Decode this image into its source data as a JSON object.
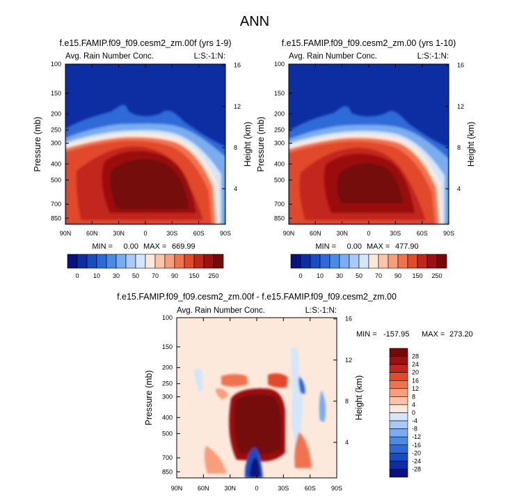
{
  "figure_title": "ANN",
  "colors": {
    "abs_levels": [
      "#08127d",
      "#0d2ea3",
      "#1a4bc2",
      "#2d6ad8",
      "#4b8be4",
      "#7aacf0",
      "#a9caf5",
      "#d3e6fa",
      "#fde9dc",
      "#fbc5aa",
      "#f79f7c",
      "#f0734f",
      "#e14a2a",
      "#c2261a",
      "#9b1010",
      "#750808"
    ],
    "diff_levels": [
      "#08127d",
      "#0d2ea3",
      "#1a4bc2",
      "#2d6ad8",
      "#4b8be4",
      "#7aacf0",
      "#a9caf5",
      "#d3e6fa",
      "#fde9dc",
      "#fbc5aa",
      "#f79f7c",
      "#f0734f",
      "#e14a2a",
      "#c2261a",
      "#9b1010",
      "#750808"
    ]
  },
  "chart_data": [
    {
      "type": "heatmap",
      "title": "f.e15.FAMIP.f09_f09.cesm2_zm.00f (yrs 1-9)",
      "left_string": "Avg. Rain Number Conc.",
      "right_string": "L:S:-1:N:",
      "xlabel": "",
      "ylabel": "Pressure (mb)",
      "y2label": "Height (km)",
      "x_ticks": [
        "90N",
        "60N",
        "30N",
        "0",
        "30S",
        "60S",
        "90S"
      ],
      "y_ticks": [
        "100",
        "150",
        "200",
        "250",
        "300",
        "400",
        "500",
        "700",
        "850"
      ],
      "y_tick_values": [
        100,
        150,
        200,
        250,
        300,
        400,
        500,
        700,
        850
      ],
      "ylim": [
        100,
        925
      ],
      "y2_ticks": [
        "16",
        "12",
        "8",
        "4"
      ],
      "y2_tick_values": [
        16,
        12,
        8,
        4
      ],
      "min_label": "MIN =",
      "min_value": "0.00",
      "max_label": "MAX =",
      "max_value": "669.99",
      "summary": "MIN =   0.00   MAX = 669.99"
    },
    {
      "type": "heatmap",
      "title": "f.e15.FAMIP.f09_f09.cesm2_zm.00 (yrs 1-10)",
      "left_string": "Avg. Rain Number Conc.",
      "right_string": "L:S:-1:N:",
      "xlabel": "",
      "ylabel": "Pressure (mb)",
      "y2label": "Height (km)",
      "x_ticks": [
        "90N",
        "60N",
        "30N",
        "0",
        "30S",
        "60S",
        "90S"
      ],
      "y_ticks": [
        "100",
        "150",
        "200",
        "250",
        "300",
        "400",
        "500",
        "700",
        "850"
      ],
      "y_tick_values": [
        100,
        150,
        200,
        250,
        300,
        400,
        500,
        700,
        850
      ],
      "ylim": [
        100,
        925
      ],
      "y2_ticks": [
        "16",
        "12",
        "8",
        "4"
      ],
      "y2_tick_values": [
        16,
        12,
        8,
        4
      ],
      "min_label": "MIN =",
      "min_value": "0.00",
      "max_label": "MAX =",
      "max_value": "477.90",
      "summary": "MIN =   0.00   MAX = 477.90"
    },
    {
      "type": "heatmap",
      "title": "f.e15.FAMIP.f09_f09.cesm2_zm.00f - f.e15.FAMIP.f09_f09.cesm2_zm.00",
      "left_string": "Avg. Rain Number Conc.",
      "right_string": "L:S:-1:N:",
      "xlabel": "",
      "ylabel": "Pressure (mb)",
      "y2label": "Height (km)",
      "x_ticks": [
        "90N",
        "60N",
        "30N",
        "0",
        "30S",
        "60S",
        "90S"
      ],
      "y_ticks": [
        "100",
        "150",
        "200",
        "250",
        "300",
        "400",
        "500",
        "700",
        "850"
      ],
      "y_tick_values": [
        100,
        150,
        200,
        250,
        300,
        400,
        500,
        700,
        850
      ],
      "ylim": [
        100,
        925
      ],
      "y2_ticks": [
        "16",
        "12",
        "8",
        "4"
      ],
      "y2_tick_values": [
        16,
        12,
        8,
        4
      ],
      "min_label": "MIN =",
      "min_value": "-157.95",
      "max_label": "MAX =",
      "max_value": "273.20",
      "summary": "MIN = -157.95   MAX = 273.20"
    }
  ],
  "colorbars": {
    "abs": {
      "labels": [
        "0",
        "10",
        "30",
        "50",
        "70",
        "90",
        "150",
        "250"
      ],
      "boundaries": [
        0,
        10,
        30,
        50,
        70,
        90,
        150,
        250
      ]
    },
    "diff": {
      "labels": [
        "28",
        "24",
        "20",
        "16",
        "12",
        "8",
        "4",
        "0",
        "-4",
        "-8",
        "-12",
        "-16",
        "-20",
        "-24",
        "-28"
      ],
      "boundaries": [
        28,
        24,
        20,
        16,
        12,
        8,
        4,
        0,
        -4,
        -8,
        -12,
        -16,
        -20,
        -24,
        -28
      ]
    }
  }
}
